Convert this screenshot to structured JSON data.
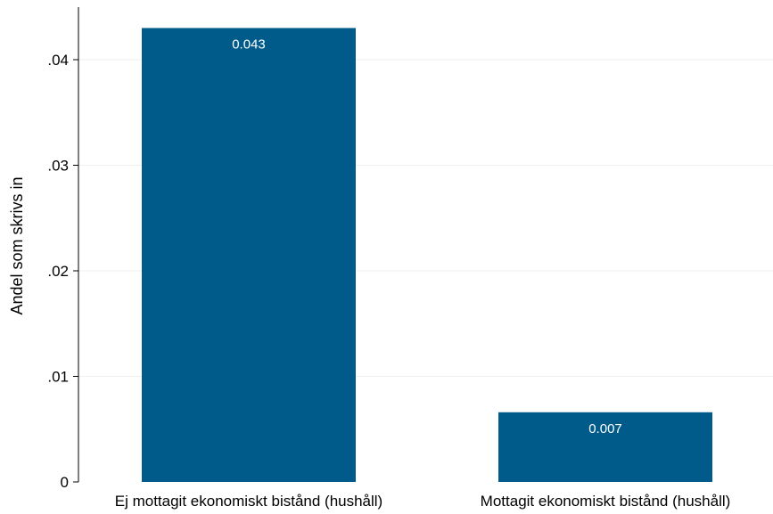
{
  "chart_data": {
    "type": "bar",
    "categories": [
      "Ej mottagit ekonomiskt bistånd (hushåll)",
      "Mottagit ekonomiskt bistånd (hushåll)"
    ],
    "values": [
      0.043,
      0.0066
    ],
    "data_labels": [
      "0.043",
      "0.007"
    ],
    "title": "",
    "xlabel": "",
    "ylabel": "Andel som  skrivs in",
    "ylim": [
      0,
      0.045
    ],
    "yticks": [
      0,
      0.01,
      0.02,
      0.03,
      0.04
    ],
    "ytick_labels": [
      "0",
      ".01",
      ".02",
      ".03",
      ".04"
    ],
    "grid": true,
    "bar_color": "#005b8a"
  }
}
